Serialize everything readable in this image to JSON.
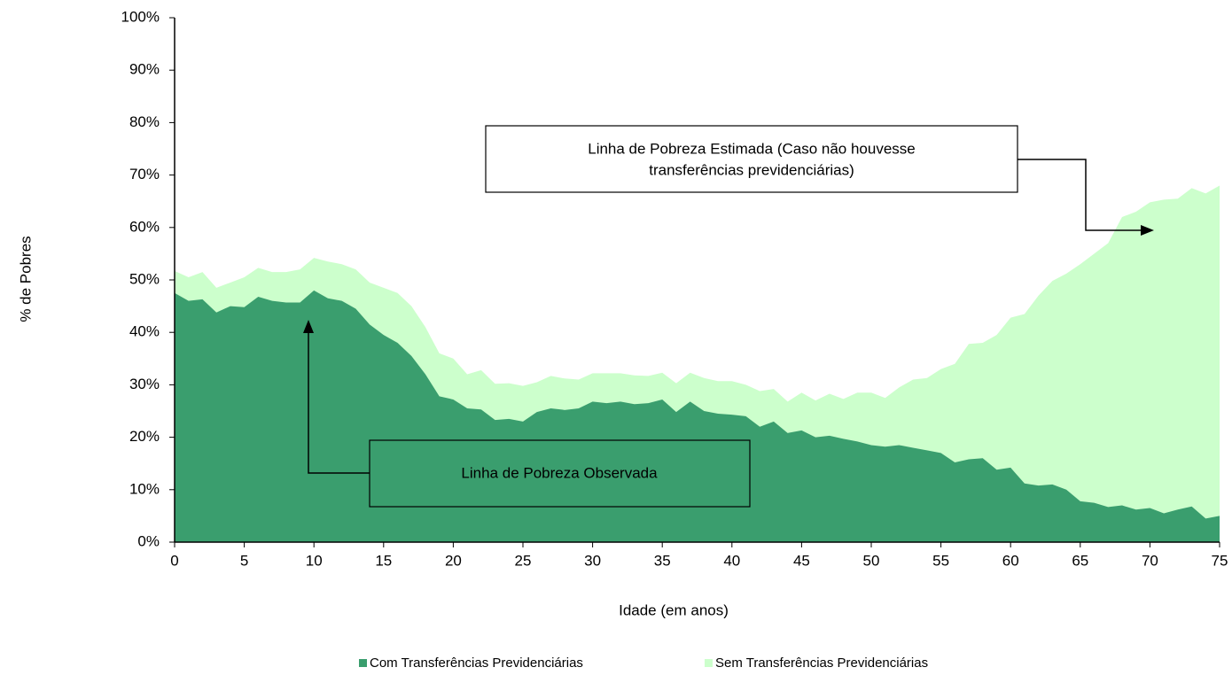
{
  "chart_data": {
    "type": "area",
    "x_label": "Idade (em anos)",
    "y_label": "% de Pobres",
    "x": [
      0,
      1,
      2,
      3,
      4,
      5,
      6,
      7,
      8,
      9,
      10,
      11,
      12,
      13,
      14,
      15,
      16,
      17,
      18,
      19,
      20,
      21,
      22,
      23,
      24,
      25,
      26,
      27,
      28,
      29,
      30,
      31,
      32,
      33,
      34,
      35,
      36,
      37,
      38,
      39,
      40,
      41,
      42,
      43,
      44,
      45,
      46,
      47,
      48,
      49,
      50,
      51,
      52,
      53,
      54,
      55,
      56,
      57,
      58,
      59,
      60,
      61,
      62,
      63,
      64,
      65,
      66,
      67,
      68,
      69,
      70,
      71,
      72,
      73,
      74,
      75
    ],
    "xlim": [
      0,
      75
    ],
    "xticks": [
      0,
      5,
      10,
      15,
      20,
      25,
      30,
      35,
      40,
      45,
      50,
      55,
      60,
      65,
      70,
      75
    ],
    "ylim": [
      0,
      100
    ],
    "yticks": [
      {
        "value": 0,
        "label": "0%"
      },
      {
        "value": 10,
        "label": "10%"
      },
      {
        "value": 20,
        "label": "20%"
      },
      {
        "value": 30,
        "label": "30%"
      },
      {
        "value": 40,
        "label": "40%"
      },
      {
        "value": 50,
        "label": "50%"
      },
      {
        "value": 60,
        "label": "60%"
      },
      {
        "value": 70,
        "label": "70%"
      },
      {
        "value": 80,
        "label": "80%"
      },
      {
        "value": 90,
        "label": "90%"
      },
      {
        "value": 100,
        "label": "100%"
      }
    ],
    "series": [
      {
        "name": "Com Transferências Previdenciárias",
        "color": "#3a9e6e",
        "values": [
          47.5,
          46,
          46.3,
          43.8,
          45,
          44.8,
          46.8,
          46,
          45.7,
          45.7,
          48,
          46.5,
          46,
          44.5,
          41.5,
          39.5,
          38,
          35.5,
          32,
          27.8,
          27.2,
          25.5,
          25.3,
          23.3,
          23.5,
          23,
          24.8,
          25.5,
          25.2,
          25.5,
          26.8,
          26.5,
          26.8,
          26.3,
          26.5,
          27.2,
          24.8,
          26.8,
          25,
          24.5,
          24.3,
          24,
          22,
          23,
          20.8,
          21.3,
          20,
          20.3,
          19.7,
          19.2,
          18.5,
          18.2,
          18.5,
          18,
          17.5,
          17,
          15.2,
          15.8,
          16,
          13.8,
          14.2,
          11.2,
          10.8,
          11,
          10,
          7.8,
          7.5,
          6.7,
          7,
          6.2,
          6.5,
          5.5,
          6.2,
          6.8,
          4.5,
          5
        ]
      },
      {
        "name": "Sem Transferências Previdenciárias",
        "color": "#ccffcc",
        "values": [
          51.7,
          50.5,
          51.5,
          48.5,
          49.5,
          50.5,
          52.3,
          51.5,
          51.5,
          52,
          54.2,
          53.5,
          53,
          52,
          49.5,
          48.5,
          47.5,
          45,
          41,
          36,
          35,
          32,
          32.8,
          30.2,
          30.3,
          29.8,
          30.5,
          31.7,
          31.2,
          31,
          32.2,
          32.2,
          32.2,
          31.8,
          31.7,
          32.3,
          30.3,
          32.3,
          31.3,
          30.7,
          30.7,
          30,
          28.8,
          29.2,
          26.8,
          28.5,
          27,
          28.3,
          27.3,
          28.5,
          28.5,
          27.5,
          29.5,
          31,
          31.3,
          33,
          34,
          37.8,
          38,
          39.5,
          42.8,
          43.5,
          47,
          49.8,
          51.2,
          53,
          55,
          57,
          62,
          63,
          64.8,
          65.3,
          65.5,
          67.5,
          66.5,
          68
        ]
      }
    ],
    "annotations": [
      {
        "lines": [
          "Linha de Pobreza Estimada (Caso não houvesse",
          "transferências previdenciárias)"
        ]
      },
      {
        "lines": [
          "Linha de Pobreza Observada"
        ]
      }
    ]
  }
}
